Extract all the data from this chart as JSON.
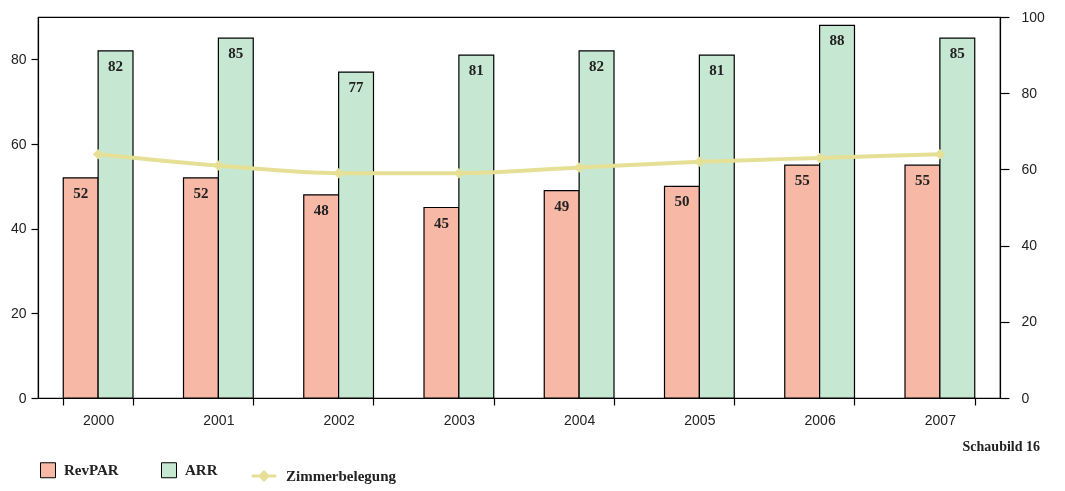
{
  "chart_data": {
    "type": "bar",
    "categories": [
      "2000",
      "2001",
      "2002",
      "2003",
      "2004",
      "2005",
      "2006",
      "2007"
    ],
    "series": [
      {
        "name": "RevPAR",
        "color": "#f7b8a6",
        "values": [
          52,
          52,
          48,
          45,
          49,
          50,
          55,
          55
        ],
        "value_labels": [
          "52",
          "52",
          "48",
          "45",
          "49",
          "50",
          "55",
          "55"
        ]
      },
      {
        "name": "ARR",
        "color": "#c6e7d1",
        "values": [
          82,
          85,
          77,
          81,
          82,
          81,
          88,
          85
        ],
        "value_labels": [
          "82",
          "85",
          "77",
          "81",
          "82",
          "81",
          "88",
          "85"
        ]
      },
      {
        "name": "Zimmerbelegung",
        "type": "line",
        "axis": "y2",
        "color": "#e6e096",
        "marker": "diamond",
        "values": [
          64,
          61,
          59,
          59,
          60.5,
          62,
          63,
          64
        ]
      }
    ],
    "ylim": [
      0,
      90
    ],
    "yticks": [
      0,
      20,
      40,
      60,
      80
    ],
    "y2lim": [
      0,
      100
    ],
    "y2ticks": [
      0,
      20,
      40,
      60,
      80,
      100
    ],
    "legend": "bottom left",
    "annotations": [
      "Schaubild 16"
    ]
  }
}
